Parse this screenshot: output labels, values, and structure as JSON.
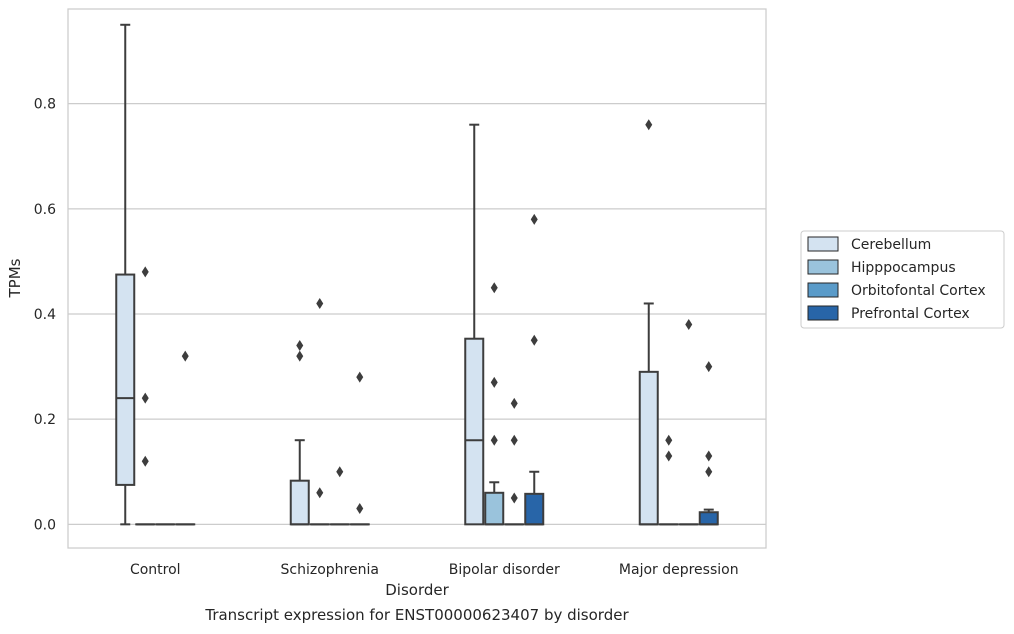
{
  "caption": "Transcript expression for ENST00000623407 by disorder",
  "chart_data": {
    "type": "boxplot",
    "xlabel": "Disorder",
    "ylabel": "TPMs",
    "categories": [
      "Control",
      "Schizophrenia",
      "Bipolar disorder",
      "Major depression"
    ],
    "ylim": [
      -0.045,
      0.98
    ],
    "yticks": [
      "0.0",
      "0.2",
      "0.4",
      "0.6",
      "0.8"
    ],
    "grid": "horizontal",
    "legend_position": "right",
    "series": [
      {
        "name": "Cerebellum",
        "color": "#d4e3f1",
        "boxes": [
          {
            "whislo": 0.0,
            "q1": 0.075,
            "med": 0.24,
            "q3": 0.475,
            "whishi": 0.95,
            "fliers": []
          },
          {
            "whislo": 0.0,
            "q1": 0.0,
            "med": 0.0,
            "q3": 0.083,
            "whishi": 0.16,
            "fliers": [
              0.32,
              0.34
            ]
          },
          {
            "whislo": 0.0,
            "q1": 0.0,
            "med": 0.16,
            "q3": 0.353,
            "whishi": 0.76,
            "fliers": []
          },
          {
            "whislo": 0.0,
            "q1": 0.0,
            "med": 0.0,
            "q3": 0.29,
            "whishi": 0.42,
            "fliers": [
              0.76
            ]
          }
        ]
      },
      {
        "name": "Hipppocampus",
        "color": "#9ac3dc",
        "boxes": [
          {
            "whislo": 0.0,
            "q1": 0.0,
            "med": 0.0,
            "q3": 0.0,
            "whishi": 0.0,
            "fliers": [
              0.12,
              0.24,
              0.48
            ]
          },
          {
            "whislo": 0.0,
            "q1": 0.0,
            "med": 0.0,
            "q3": 0.0,
            "whishi": 0.0,
            "fliers": [
              0.06,
              0.42
            ]
          },
          {
            "whislo": 0.0,
            "q1": 0.0,
            "med": 0.0,
            "q3": 0.06,
            "whishi": 0.08,
            "fliers": [
              0.16,
              0.27,
              0.45
            ]
          },
          {
            "whislo": 0.0,
            "q1": 0.0,
            "med": 0.0,
            "q3": 0.0,
            "whishi": 0.0,
            "fliers": [
              0.13,
              0.16
            ]
          }
        ]
      },
      {
        "name": "Orbitofontal Cortex",
        "color": "#5a9bc9",
        "boxes": [
          {
            "whislo": 0.0,
            "q1": 0.0,
            "med": 0.0,
            "q3": 0.0,
            "whishi": 0.0,
            "fliers": []
          },
          {
            "whislo": 0.0,
            "q1": 0.0,
            "med": 0.0,
            "q3": 0.0,
            "whishi": 0.0,
            "fliers": [
              0.1
            ]
          },
          {
            "whislo": 0.0,
            "q1": 0.0,
            "med": 0.0,
            "q3": 0.0,
            "whishi": 0.0,
            "fliers": [
              0.05,
              0.16,
              0.23
            ]
          },
          {
            "whislo": 0.0,
            "q1": 0.0,
            "med": 0.0,
            "q3": 0.0,
            "whishi": 0.0,
            "fliers": [
              0.38
            ]
          }
        ]
      },
      {
        "name": "Prefrontal Cortex",
        "color": "#2865a8",
        "boxes": [
          {
            "whislo": 0.0,
            "q1": 0.0,
            "med": 0.0,
            "q3": 0.0,
            "whishi": 0.0,
            "fliers": [
              0.32
            ]
          },
          {
            "whislo": 0.0,
            "q1": 0.0,
            "med": 0.0,
            "q3": 0.0,
            "whishi": 0.0,
            "fliers": [
              0.03,
              0.28
            ]
          },
          {
            "whislo": 0.0,
            "q1": 0.0,
            "med": 0.0,
            "q3": 0.058,
            "whishi": 0.1,
            "fliers": [
              0.35,
              0.58
            ]
          },
          {
            "whislo": 0.0,
            "q1": 0.0,
            "med": 0.0,
            "q3": 0.023,
            "whishi": 0.028,
            "fliers": [
              0.1,
              0.13,
              0.3
            ]
          }
        ]
      }
    ]
  }
}
